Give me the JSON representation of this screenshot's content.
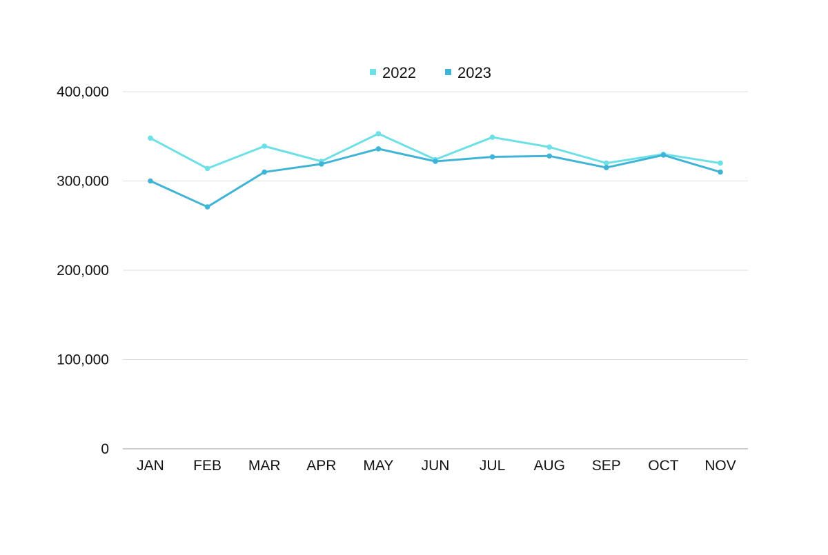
{
  "chart_data": {
    "type": "line",
    "title": "",
    "xlabel": "",
    "ylabel": "",
    "categories": [
      "JAN",
      "FEB",
      "MAR",
      "APR",
      "MAY",
      "JUN",
      "JUL",
      "AUG",
      "SEP",
      "OCT",
      "NOV"
    ],
    "ylim": [
      0,
      400000
    ],
    "yticks": [
      0,
      100000,
      200000,
      300000,
      400000
    ],
    "ytick_labels": [
      "0",
      "100,000",
      "200,000",
      "300,000",
      "400,000"
    ],
    "grid": true,
    "legend_position": "top-center",
    "series": [
      {
        "name": "2022",
        "color": "#6ce0e6",
        "values": [
          348000,
          314000,
          339000,
          322000,
          353000,
          324000,
          349000,
          338000,
          320000,
          330000,
          320000
        ]
      },
      {
        "name": "2023",
        "color": "#40b4d6",
        "values": [
          300000,
          271000,
          310000,
          319000,
          336000,
          322000,
          327000,
          328000,
          315000,
          329000,
          310000
        ]
      }
    ]
  }
}
